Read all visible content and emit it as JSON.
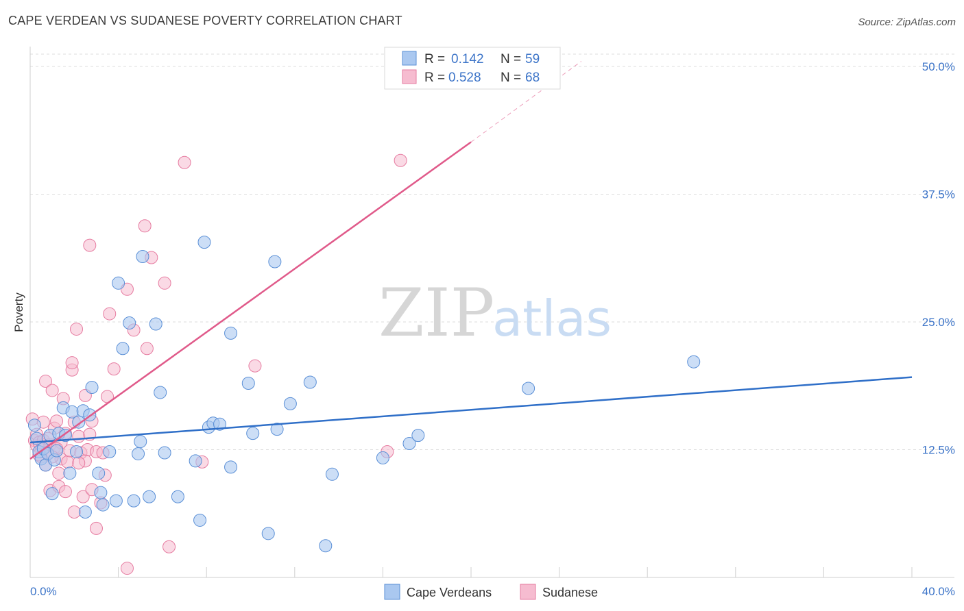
{
  "header": {
    "title": "CAPE VERDEAN VS SUDANESE POVERTY CORRELATION CHART",
    "source": "Source: ZipAtlas.com"
  },
  "watermark": {
    "zip": "ZIP",
    "atlas": "atlas"
  },
  "legend": {
    "rows": [
      {
        "r_label": "R =",
        "r_value": "0.142",
        "n_label": "N =",
        "n_value": "59",
        "color": "#aac8f0"
      },
      {
        "r_label": "R =",
        "r_value": "0.528",
        "n_label": "N =",
        "n_value": "68",
        "color": "#f6bcd0"
      }
    ]
  },
  "bottom_legend": {
    "series1": "Cape Verdeans",
    "series2": "Sudanese"
  },
  "chart_data": {
    "type": "scatter",
    "title": "CAPE VERDEAN VS SUDANESE POVERTY CORRELATION CHART",
    "xlabel": "",
    "ylabel": "Poverty",
    "xlim": [
      0,
      40
    ],
    "ylim": [
      0,
      50
    ],
    "x_tick_labels": [
      "0.0%",
      "40.0%"
    ],
    "y_ticks": [
      12.5,
      25.0,
      37.5,
      50.0
    ],
    "y_tick_labels": [
      "12.5%",
      "25.0%",
      "37.5%",
      "50.0%"
    ],
    "series": [
      {
        "name": "Cape Verdeans",
        "color": "#aac8f0",
        "stroke": "#5a8fd6",
        "line_color": "#2f6fc8",
        "trend": {
          "x0": 0,
          "y0": 13.2,
          "x1": 40,
          "y1": 19.6
        },
        "points": [
          [
            0.2,
            14.9
          ],
          [
            0.3,
            13.6
          ],
          [
            0.4,
            12.3
          ],
          [
            0.5,
            11.6
          ],
          [
            0.6,
            12.6
          ],
          [
            0.7,
            11.0
          ],
          [
            0.8,
            12.1
          ],
          [
            0.9,
            13.9
          ],
          [
            1.0,
            8.2
          ],
          [
            1.1,
            11.5
          ],
          [
            1.2,
            12.4
          ],
          [
            1.3,
            14.1
          ],
          [
            1.5,
            16.6
          ],
          [
            1.6,
            13.9
          ],
          [
            1.8,
            10.2
          ],
          [
            1.9,
            16.2
          ],
          [
            2.1,
            12.3
          ],
          [
            2.2,
            15.2
          ],
          [
            2.4,
            16.3
          ],
          [
            2.5,
            6.4
          ],
          [
            2.7,
            15.9
          ],
          [
            2.8,
            18.6
          ],
          [
            3.1,
            10.2
          ],
          [
            3.2,
            8.3
          ],
          [
            3.3,
            7.1
          ],
          [
            3.6,
            12.3
          ],
          [
            3.9,
            7.5
          ],
          [
            4.0,
            28.8
          ],
          [
            4.2,
            22.4
          ],
          [
            4.5,
            24.9
          ],
          [
            4.7,
            7.5
          ],
          [
            4.9,
            12.1
          ],
          [
            5.0,
            13.3
          ],
          [
            5.1,
            31.4
          ],
          [
            5.4,
            7.9
          ],
          [
            5.7,
            24.8
          ],
          [
            5.9,
            18.1
          ],
          [
            6.1,
            12.2
          ],
          [
            6.7,
            7.9
          ],
          [
            7.5,
            11.4
          ],
          [
            7.7,
            5.6
          ],
          [
            7.9,
            32.8
          ],
          [
            8.1,
            14.7
          ],
          [
            8.3,
            15.1
          ],
          [
            8.6,
            15.0
          ],
          [
            9.1,
            10.8
          ],
          [
            9.1,
            23.9
          ],
          [
            9.9,
            19.0
          ],
          [
            10.1,
            14.1
          ],
          [
            10.8,
            4.3
          ],
          [
            11.1,
            30.9
          ],
          [
            11.2,
            14.5
          ],
          [
            11.8,
            17.0
          ],
          [
            12.7,
            19.1
          ],
          [
            13.4,
            3.1
          ],
          [
            13.7,
            10.1
          ],
          [
            16.0,
            11.7
          ],
          [
            17.2,
            13.1
          ],
          [
            17.6,
            13.9
          ],
          [
            22.6,
            18.5
          ],
          [
            30.1,
            21.1
          ]
        ]
      },
      {
        "name": "Sudanese",
        "color": "#f6bcd0",
        "stroke": "#e67ba0",
        "line_color": "#e05a8a",
        "trend": {
          "x0": 0,
          "y0": 11.6,
          "x1": 20.0,
          "y1": 42.6
        },
        "trend_dashed_to": {
          "x1": 25.0,
          "y1": 50.5
        },
        "points": [
          [
            0.1,
            15.5
          ],
          [
            0.2,
            13.4
          ],
          [
            0.3,
            12.9
          ],
          [
            0.3,
            14.0
          ],
          [
            0.4,
            13.2
          ],
          [
            0.5,
            12.5
          ],
          [
            0.5,
            11.8
          ],
          [
            0.6,
            15.2
          ],
          [
            0.6,
            13.4
          ],
          [
            0.7,
            11.0
          ],
          [
            0.7,
            19.2
          ],
          [
            0.8,
            12.2
          ],
          [
            0.9,
            13.0
          ],
          [
            0.9,
            8.5
          ],
          [
            1.0,
            18.3
          ],
          [
            1.1,
            14.6
          ],
          [
            1.1,
            12.7
          ],
          [
            1.2,
            15.3
          ],
          [
            1.3,
            10.2
          ],
          [
            1.3,
            8.9
          ],
          [
            1.4,
            13.2
          ],
          [
            1.4,
            11.6
          ],
          [
            1.5,
            17.5
          ],
          [
            1.6,
            8.4
          ],
          [
            1.6,
            14.1
          ],
          [
            1.7,
            11.3
          ],
          [
            1.8,
            12.4
          ],
          [
            1.9,
            20.3
          ],
          [
            1.9,
            21.0
          ],
          [
            2.0,
            6.4
          ],
          [
            2.0,
            15.2
          ],
          [
            2.1,
            24.3
          ],
          [
            2.2,
            13.8
          ],
          [
            2.3,
            12.2
          ],
          [
            2.4,
            7.9
          ],
          [
            2.5,
            17.8
          ],
          [
            2.5,
            11.4
          ],
          [
            2.6,
            12.5
          ],
          [
            2.7,
            14.0
          ],
          [
            2.7,
            32.5
          ],
          [
            2.8,
            8.6
          ],
          [
            2.8,
            15.3
          ],
          [
            3.0,
            4.8
          ],
          [
            3.0,
            12.3
          ],
          [
            3.2,
            7.3
          ],
          [
            3.3,
            12.2
          ],
          [
            3.4,
            10.0
          ],
          [
            3.5,
            17.7
          ],
          [
            3.6,
            25.8
          ],
          [
            3.8,
            20.4
          ],
          [
            4.4,
            28.2
          ],
          [
            4.4,
            0.9
          ],
          [
            4.7,
            24.2
          ],
          [
            5.2,
            34.4
          ],
          [
            5.3,
            22.4
          ],
          [
            5.5,
            31.3
          ],
          [
            6.1,
            28.8
          ],
          [
            6.3,
            3.0
          ],
          [
            7.0,
            40.6
          ],
          [
            7.8,
            11.3
          ],
          [
            10.2,
            20.7
          ],
          [
            16.8,
            40.8
          ],
          [
            16.2,
            12.3
          ],
          [
            1.2,
            12.6
          ],
          [
            0.4,
            12.0
          ],
          [
            0.8,
            13.6
          ],
          [
            2.2,
            11.2
          ],
          [
            1.0,
            11.8
          ]
        ]
      }
    ]
  }
}
